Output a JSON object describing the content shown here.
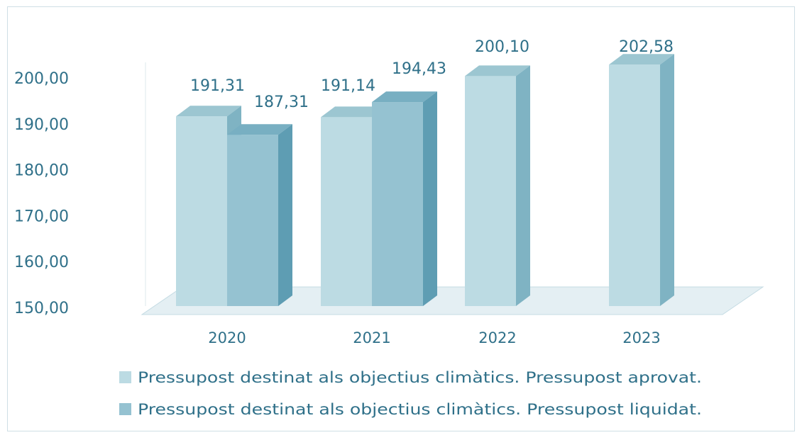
{
  "colors": {
    "approved_front": "#bcdbe3",
    "approved_top": "#9cc6d1",
    "approved_side": "#7fb3c3",
    "liquidated_front": "#95c2d1",
    "liquidated_top": "#78afc2",
    "liquidated_side": "#5e9db3",
    "text": "#2f7089",
    "floor": "#e4eff3",
    "floor_line": "#c4dbe3"
  },
  "chart_data": {
    "type": "bar",
    "three_d": true,
    "categories": [
      "2020",
      "2021",
      "2022",
      "2023"
    ],
    "series": [
      {
        "name": "Pressupost destinat als objectius climàtics. Pressupost aprovat.",
        "values": [
          191.31,
          191.14,
          200.1,
          202.58
        ]
      },
      {
        "name": "Pressupost destinat als objectius climàtics. Pressupost liquidat.",
        "values": [
          187.31,
          194.43,
          null,
          null
        ]
      }
    ],
    "data_labels": [
      [
        "191,31",
        "191,14",
        "200,10",
        "202,58"
      ],
      [
        "187,31",
        "194,43",
        "",
        ""
      ]
    ],
    "ylim": [
      150,
      200
    ],
    "yticks": [
      150,
      160,
      170,
      180,
      190,
      200
    ],
    "ytick_labels": [
      "150,00",
      "160,00",
      "170,00",
      "180,00",
      "190,00",
      "200,00"
    ],
    "grid": false,
    "legend_position": "bottom"
  }
}
